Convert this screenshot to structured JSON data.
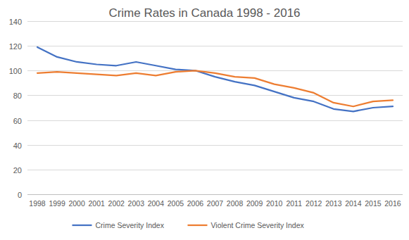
{
  "chart_data": {
    "type": "line",
    "title": "Crime Rates in Canada 1998 - 2016",
    "categories": [
      "1998",
      "1999",
      "2000",
      "2001",
      "2002",
      "2003",
      "2004",
      "2005",
      "2006",
      "2007",
      "2008",
      "2009",
      "2010",
      "2011",
      "2012",
      "2013",
      "2014",
      "2015",
      "2016"
    ],
    "series": [
      {
        "name": "Crime Severity Index",
        "color": "#4472c4",
        "values": [
          119,
          111,
          107,
          105,
          104,
          107,
          104,
          101,
          100,
          95,
          91,
          88,
          83,
          78,
          75,
          69,
          67,
          70,
          71
        ]
      },
      {
        "name": "Violent Crime Severity Index",
        "color": "#ed7d31",
        "values": [
          98,
          99,
          98,
          97,
          96,
          98,
          96,
          99,
          100,
          98,
          95,
          94,
          89,
          86,
          82,
          74,
          71,
          75,
          76
        ]
      }
    ],
    "ylim": [
      0,
      140
    ],
    "yticks": [
      0,
      20,
      40,
      60,
      80,
      100,
      120,
      140
    ],
    "grid": true,
    "legend": "bottom"
  }
}
